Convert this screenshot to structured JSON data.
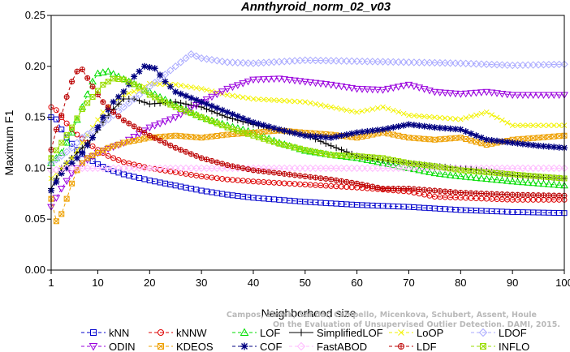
{
  "chart_data": {
    "type": "line",
    "title": "Annthyroid_norm_02_v03",
    "xlabel": "Neighborhood size",
    "ylabel": "Maximum F1",
    "xlim": [
      1,
      100
    ],
    "ylim": [
      0.0,
      0.25
    ],
    "xticks": [
      1,
      10,
      20,
      30,
      40,
      50,
      60,
      70,
      80,
      90,
      100
    ],
    "yticks": [
      "0.00",
      "0.05",
      "0.10",
      "0.15",
      "0.20",
      "0.25"
    ],
    "grid": false,
    "legend_position": "bottom",
    "credit": [
      "Campos, Zimek, Sander, Campello, Micenkova, Schubert, Assent, Houle",
      "On the Evaluation of Unsupervised Outlier Detection. DAMI, 2015."
    ],
    "series": [
      {
        "name": "kNN",
        "color": "#0000cc",
        "marker": "square",
        "dash": "4,3",
        "points": [
          [
            1,
            0.15
          ],
          [
            2,
            0.148
          ],
          [
            3,
            0.138
          ],
          [
            4,
            0.13
          ],
          [
            5,
            0.124
          ],
          [
            6,
            0.118
          ],
          [
            8,
            0.11
          ],
          [
            10,
            0.104
          ],
          [
            12,
            0.099
          ],
          [
            15,
            0.094
          ],
          [
            20,
            0.088
          ],
          [
            25,
            0.083
          ],
          [
            30,
            0.078
          ],
          [
            35,
            0.074
          ],
          [
            40,
            0.071
          ],
          [
            50,
            0.067
          ],
          [
            60,
            0.064
          ],
          [
            70,
            0.062
          ],
          [
            80,
            0.059
          ],
          [
            90,
            0.057
          ],
          [
            100,
            0.056
          ]
        ]
      },
      {
        "name": "kNNW",
        "color": "#dd0000",
        "marker": "circle",
        "dash": "4,3",
        "points": [
          [
            1,
            0.16
          ],
          [
            2,
            0.157
          ],
          [
            3,
            0.15
          ],
          [
            4,
            0.144
          ],
          [
            5,
            0.138
          ],
          [
            6,
            0.133
          ],
          [
            8,
            0.125
          ],
          [
            10,
            0.118
          ],
          [
            12,
            0.112
          ],
          [
            15,
            0.106
          ],
          [
            20,
            0.1
          ],
          [
            25,
            0.096
          ],
          [
            30,
            0.092
          ],
          [
            35,
            0.089
          ],
          [
            40,
            0.087
          ],
          [
            50,
            0.084
          ],
          [
            60,
            0.081
          ],
          [
            70,
            0.077
          ],
          [
            75,
            0.072
          ],
          [
            80,
            0.071
          ],
          [
            90,
            0.069
          ],
          [
            100,
            0.069
          ]
        ]
      },
      {
        "name": "LOF",
        "color": "#00dd00",
        "marker": "triangle",
        "dash": "4,3",
        "points": [
          [
            1,
            0.105
          ],
          [
            3,
            0.115
          ],
          [
            5,
            0.135
          ],
          [
            7,
            0.16
          ],
          [
            9,
            0.185
          ],
          [
            10,
            0.193
          ],
          [
            12,
            0.195
          ],
          [
            14,
            0.19
          ],
          [
            16,
            0.185
          ],
          [
            18,
            0.18
          ],
          [
            20,
            0.175
          ],
          [
            25,
            0.162
          ],
          [
            30,
            0.15
          ],
          [
            35,
            0.142
          ],
          [
            40,
            0.135
          ],
          [
            45,
            0.125
          ],
          [
            50,
            0.117
          ],
          [
            55,
            0.113
          ],
          [
            60,
            0.11
          ],
          [
            65,
            0.105
          ],
          [
            70,
            0.1
          ],
          [
            75,
            0.095
          ],
          [
            80,
            0.092
          ],
          [
            90,
            0.087
          ],
          [
            100,
            0.083
          ]
        ]
      },
      {
        "name": "SimplifiedLOF",
        "color": "#000000",
        "marker": "plus",
        "dash": "",
        "points": [
          [
            1,
            0.08
          ],
          [
            3,
            0.1
          ],
          [
            5,
            0.11
          ],
          [
            7,
            0.12
          ],
          [
            9,
            0.13
          ],
          [
            11,
            0.145
          ],
          [
            13,
            0.158
          ],
          [
            15,
            0.168
          ],
          [
            17,
            0.168
          ],
          [
            20,
            0.163
          ],
          [
            25,
            0.165
          ],
          [
            30,
            0.16
          ],
          [
            35,
            0.15
          ],
          [
            40,
            0.143
          ],
          [
            45,
            0.137
          ],
          [
            50,
            0.133
          ],
          [
            55,
            0.122
          ],
          [
            60,
            0.112
          ],
          [
            65,
            0.108
          ],
          [
            70,
            0.105
          ],
          [
            75,
            0.102
          ],
          [
            80,
            0.1
          ],
          [
            85,
            0.097
          ],
          [
            90,
            0.093
          ],
          [
            100,
            0.09
          ]
        ]
      },
      {
        "name": "LoOP",
        "color": "#f2f200",
        "marker": "x",
        "dash": "4,3",
        "points": [
          [
            1,
            0.09
          ],
          [
            3,
            0.1
          ],
          [
            5,
            0.11
          ],
          [
            7,
            0.125
          ],
          [
            9,
            0.14
          ],
          [
            11,
            0.155
          ],
          [
            13,
            0.165
          ],
          [
            15,
            0.172
          ],
          [
            18,
            0.177
          ],
          [
            20,
            0.183
          ],
          [
            25,
            0.182
          ],
          [
            30,
            0.178
          ],
          [
            35,
            0.172
          ],
          [
            40,
            0.168
          ],
          [
            50,
            0.165
          ],
          [
            60,
            0.155
          ],
          [
            65,
            0.16
          ],
          [
            70,
            0.152
          ],
          [
            80,
            0.148
          ],
          [
            85,
            0.155
          ],
          [
            90,
            0.142
          ],
          [
            100,
            0.142
          ]
        ]
      },
      {
        "name": "LDOF",
        "color": "#aaaaff",
        "marker": "diamond",
        "dash": "4,3",
        "points": [
          [
            1,
            0.105
          ],
          [
            3,
            0.112
          ],
          [
            5,
            0.12
          ],
          [
            7,
            0.13
          ],
          [
            10,
            0.14
          ],
          [
            15,
            0.16
          ],
          [
            20,
            0.18
          ],
          [
            25,
            0.2
          ],
          [
            28,
            0.212
          ],
          [
            30,
            0.208
          ],
          [
            35,
            0.204
          ],
          [
            40,
            0.203
          ],
          [
            50,
            0.206
          ],
          [
            60,
            0.205
          ],
          [
            70,
            0.204
          ],
          [
            80,
            0.203
          ],
          [
            90,
            0.201
          ],
          [
            100,
            0.202
          ]
        ]
      },
      {
        "name": "ODIN",
        "color": "#9900dd",
        "marker": "triangle-down",
        "dash": "4,3",
        "points": [
          [
            1,
            0.062
          ],
          [
            3,
            0.08
          ],
          [
            5,
            0.095
          ],
          [
            7,
            0.105
          ],
          [
            10,
            0.115
          ],
          [
            15,
            0.125
          ],
          [
            20,
            0.14
          ],
          [
            25,
            0.15
          ],
          [
            30,
            0.165
          ],
          [
            35,
            0.178
          ],
          [
            40,
            0.187
          ],
          [
            45,
            0.188
          ],
          [
            50,
            0.185
          ],
          [
            55,
            0.182
          ],
          [
            60,
            0.178
          ],
          [
            65,
            0.177
          ],
          [
            70,
            0.182
          ],
          [
            75,
            0.175
          ],
          [
            80,
            0.173
          ],
          [
            85,
            0.175
          ],
          [
            90,
            0.172
          ],
          [
            100,
            0.172
          ]
        ]
      },
      {
        "name": "KDEOS",
        "color": "#eea000",
        "marker": "square-x",
        "dash": "4,3",
        "points": [
          [
            1,
            0.07
          ],
          [
            2,
            0.048
          ],
          [
            3,
            0.055
          ],
          [
            4,
            0.07
          ],
          [
            5,
            0.085
          ],
          [
            6,
            0.098
          ],
          [
            7,
            0.105
          ],
          [
            8,
            0.11
          ],
          [
            10,
            0.115
          ],
          [
            12,
            0.12
          ],
          [
            15,
            0.125
          ],
          [
            20,
            0.13
          ],
          [
            25,
            0.132
          ],
          [
            30,
            0.13
          ],
          [
            35,
            0.133
          ],
          [
            40,
            0.135
          ],
          [
            45,
            0.137
          ],
          [
            50,
            0.135
          ],
          [
            55,
            0.133
          ],
          [
            60,
            0.13
          ],
          [
            65,
            0.135
          ],
          [
            70,
            0.13
          ],
          [
            75,
            0.128
          ],
          [
            80,
            0.13
          ],
          [
            85,
            0.123
          ],
          [
            90,
            0.128
          ],
          [
            95,
            0.13
          ],
          [
            100,
            0.132
          ]
        ]
      },
      {
        "name": "COF",
        "color": "#000080",
        "marker": "asterisk",
        "dash": "4,3",
        "points": [
          [
            1,
            0.078
          ],
          [
            3,
            0.095
          ],
          [
            5,
            0.105
          ],
          [
            7,
            0.115
          ],
          [
            9,
            0.13
          ],
          [
            11,
            0.15
          ],
          [
            13,
            0.165
          ],
          [
            15,
            0.175
          ],
          [
            17,
            0.19
          ],
          [
            19,
            0.2
          ],
          [
            21,
            0.198
          ],
          [
            23,
            0.185
          ],
          [
            25,
            0.175
          ],
          [
            30,
            0.165
          ],
          [
            35,
            0.155
          ],
          [
            40,
            0.145
          ],
          [
            45,
            0.138
          ],
          [
            50,
            0.132
          ],
          [
            55,
            0.13
          ],
          [
            60,
            0.135
          ],
          [
            65,
            0.138
          ],
          [
            70,
            0.143
          ],
          [
            75,
            0.14
          ],
          [
            80,
            0.138
          ],
          [
            85,
            0.128
          ],
          [
            90,
            0.125
          ],
          [
            95,
            0.122
          ],
          [
            100,
            0.12
          ]
        ]
      },
      {
        "name": "FastABOD",
        "color": "#ffbbff",
        "marker": "diamond",
        "dash": "4,3",
        "points": [
          [
            1,
            0.098
          ],
          [
            3,
            0.099
          ],
          [
            5,
            0.1
          ],
          [
            10,
            0.1
          ],
          [
            20,
            0.1
          ],
          [
            30,
            0.1
          ],
          [
            40,
            0.1
          ],
          [
            50,
            0.1
          ],
          [
            60,
            0.1
          ],
          [
            70,
            0.1
          ],
          [
            80,
            0.1
          ],
          [
            90,
            0.1
          ],
          [
            100,
            0.1
          ]
        ]
      },
      {
        "name": "LDF",
        "color": "#bb0000",
        "marker": "circle-plus",
        "dash": "4,3",
        "points": [
          [
            1,
            0.118
          ],
          [
            2,
            0.138
          ],
          [
            3,
            0.152
          ],
          [
            4,
            0.17
          ],
          [
            5,
            0.185
          ],
          [
            6,
            0.195
          ],
          [
            7,
            0.197
          ],
          [
            9,
            0.18
          ],
          [
            11,
            0.165
          ],
          [
            13,
            0.155
          ],
          [
            15,
            0.147
          ],
          [
            18,
            0.138
          ],
          [
            20,
            0.132
          ],
          [
            25,
            0.12
          ],
          [
            30,
            0.11
          ],
          [
            35,
            0.103
          ],
          [
            40,
            0.098
          ],
          [
            45,
            0.095
          ],
          [
            50,
            0.092
          ],
          [
            55,
            0.089
          ],
          [
            60,
            0.085
          ],
          [
            65,
            0.08
          ],
          [
            70,
            0.08
          ],
          [
            75,
            0.078
          ],
          [
            80,
            0.076
          ],
          [
            90,
            0.074
          ],
          [
            100,
            0.073
          ]
        ]
      },
      {
        "name": "INFLO",
        "color": "#99dd00",
        "marker": "square-x",
        "dash": "4,3",
        "points": [
          [
            1,
            0.11
          ],
          [
            3,
            0.125
          ],
          [
            5,
            0.14
          ],
          [
            7,
            0.158
          ],
          [
            9,
            0.17
          ],
          [
            11,
            0.182
          ],
          [
            13,
            0.188
          ],
          [
            15,
            0.187
          ],
          [
            18,
            0.18
          ],
          [
            20,
            0.172
          ],
          [
            25,
            0.16
          ],
          [
            30,
            0.15
          ],
          [
            35,
            0.14
          ],
          [
            40,
            0.132
          ],
          [
            45,
            0.124
          ],
          [
            50,
            0.118
          ],
          [
            55,
            0.113
          ],
          [
            60,
            0.112
          ],
          [
            65,
            0.11
          ],
          [
            70,
            0.105
          ],
          [
            75,
            0.102
          ],
          [
            80,
            0.098
          ],
          [
            90,
            0.094
          ],
          [
            100,
            0.09
          ]
        ]
      }
    ]
  }
}
